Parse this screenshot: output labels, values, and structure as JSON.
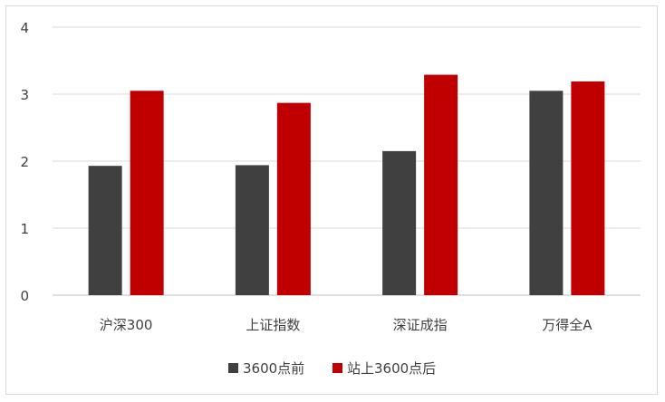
{
  "chart_data": {
    "type": "bar",
    "categories": [
      "沪深300",
      "上证指数",
      "深证成指",
      "万得全A"
    ],
    "series": [
      {
        "name": "3600点前",
        "values": [
          1.93,
          1.94,
          2.15,
          3.05
        ],
        "color": "#404040"
      },
      {
        "name": "站上3600点后",
        "values": [
          3.05,
          2.87,
          3.29,
          3.19
        ],
        "color": "#c00000"
      }
    ],
    "yticks": [
      "0",
      "1",
      "2",
      "3",
      "4"
    ],
    "ylim": [
      0,
      4
    ],
    "grid": true,
    "legend": "bottom",
    "title": "",
    "xlabel": "",
    "ylabel": ""
  }
}
